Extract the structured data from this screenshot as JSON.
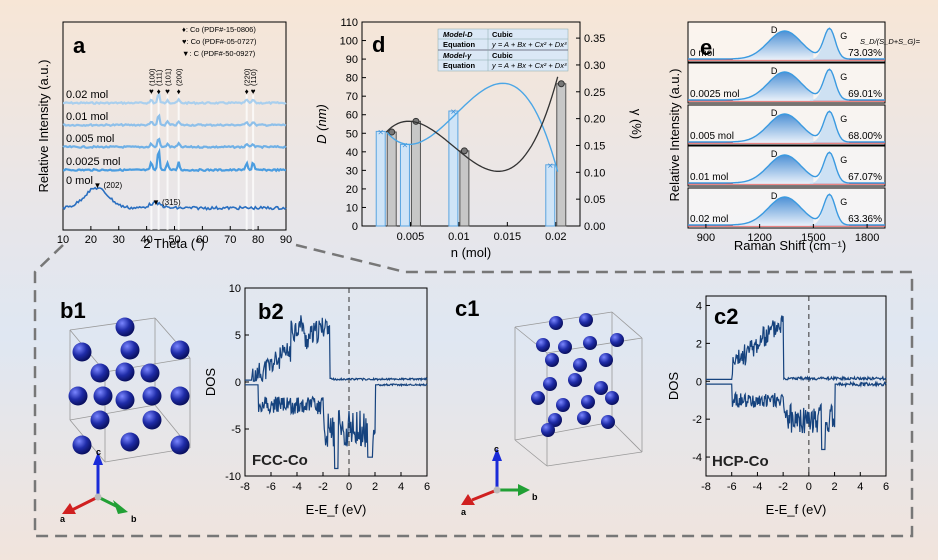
{
  "chart_data": [
    {
      "panel": "a",
      "type": "line",
      "xlabel": "2 Theta (°)",
      "ylabel": "Relative Intensity (a.u.)",
      "xlim": [
        10,
        90
      ],
      "xticks": [
        10,
        20,
        30,
        40,
        50,
        60,
        70,
        80,
        90
      ],
      "series_labels": [
        "0.02 mol",
        "0.01 mol",
        "0.005 mol",
        "0.0025 mol",
        "0 mol"
      ],
      "legend": [
        "♦: Co (PDF#-15-0806)",
        "♥: Co (PDF#-05-0727)",
        "▼: C (PDF#-50-0927)"
      ],
      "peaks": [
        {
          "x": 41.7,
          "label": "(100)"
        },
        {
          "x": 44.3,
          "label": "(111)"
        },
        {
          "x": 47.5,
          "label": "(101)"
        },
        {
          "x": 51.5,
          "label": "(200)"
        },
        {
          "x": 75.9,
          "label": "(220)"
        },
        {
          "x": 78.2,
          "label": "(110)"
        }
      ],
      "carbon_peaks": [
        {
          "x": 22,
          "label": "(202)"
        },
        {
          "x": 43,
          "label": "(315)"
        }
      ]
    },
    {
      "panel": "d",
      "type": "bar+line",
      "xlabel": "n (mol)",
      "ylabel_left": "D (nm)",
      "ylabel_right": "γ (%)",
      "ylim_left": [
        0,
        110
      ],
      "yticks_left": [
        0,
        10,
        20,
        30,
        40,
        50,
        60,
        70,
        80,
        90,
        100,
        110
      ],
      "ylim_right": [
        0,
        0.38
      ],
      "yticks_right": [
        "0.00",
        "0.05",
        "0.10",
        "0.15",
        "0.20",
        "0.25",
        "0.30",
        "0.35"
      ],
      "xticks": [
        "0.005",
        "0.01",
        "0.015",
        "0.02"
      ],
      "categories": [
        0.0025,
        0.005,
        0.01,
        0.02
      ],
      "series": [
        {
          "name": "D",
          "values": [
            51,
            44,
            62,
            33
          ]
        },
        {
          "name": "γ",
          "values": [
            0.175,
            0.195,
            0.14,
            0.265
          ]
        }
      ],
      "table": [
        [
          "Model-D",
          "Cubic"
        ],
        [
          "Equation",
          "y = A + Bx + Cx² + Dx³"
        ],
        [
          "Model-γ",
          "Cubic"
        ],
        [
          "Equation",
          "y = A + Bx + Cx² + Dx³"
        ]
      ]
    },
    {
      "panel": "e",
      "type": "line",
      "xlabel": "Raman Shift (cm⁻¹)",
      "ylabel": "Relative Intensity (a.u.)",
      "xticks": [
        900,
        1200,
        1500,
        1800
      ],
      "ratio_label": "S_D/(S_D+S_G)=",
      "series": [
        {
          "name": "0 mol",
          "ratio": "73.03%"
        },
        {
          "name": "0.0025 mol",
          "ratio": "69.01%"
        },
        {
          "name": "0.005 mol",
          "ratio": "68.00%"
        },
        {
          "name": "0.01 mol",
          "ratio": "67.07%"
        },
        {
          "name": "0.02 mol",
          "ratio": "63.36%"
        }
      ],
      "peak_labels": [
        "D",
        "G"
      ]
    },
    {
      "panel": "b2",
      "type": "line",
      "xlabel": "E-E_f (eV)",
      "ylabel": "DOS",
      "xlim": [
        -8,
        6
      ],
      "ylim": [
        -10,
        10
      ],
      "xticks": [
        -8,
        -6,
        -4,
        -2,
        0,
        2,
        4,
        6
      ],
      "yticks": [
        -10,
        -5,
        0,
        5,
        10
      ],
      "label": "FCC-Co"
    },
    {
      "panel": "c2",
      "type": "line",
      "xlabel": "E-E_f (eV)",
      "ylabel": "DOS",
      "xlim": [
        -8,
        6
      ],
      "ylim": [
        -5,
        4.5
      ],
      "xticks": [
        -8,
        -6,
        -4,
        -2,
        0,
        2,
        4,
        6
      ],
      "yticks": [
        -4,
        -2,
        0,
        2,
        4
      ],
      "label": "HCP-Co"
    }
  ],
  "panel_labels": {
    "a": "a",
    "d": "d",
    "e": "e",
    "b1": "b1",
    "b2": "b2",
    "c1": "c1",
    "c2": "c2"
  },
  "axes_letters": {
    "a": "a",
    "b": "b",
    "c": "c"
  }
}
